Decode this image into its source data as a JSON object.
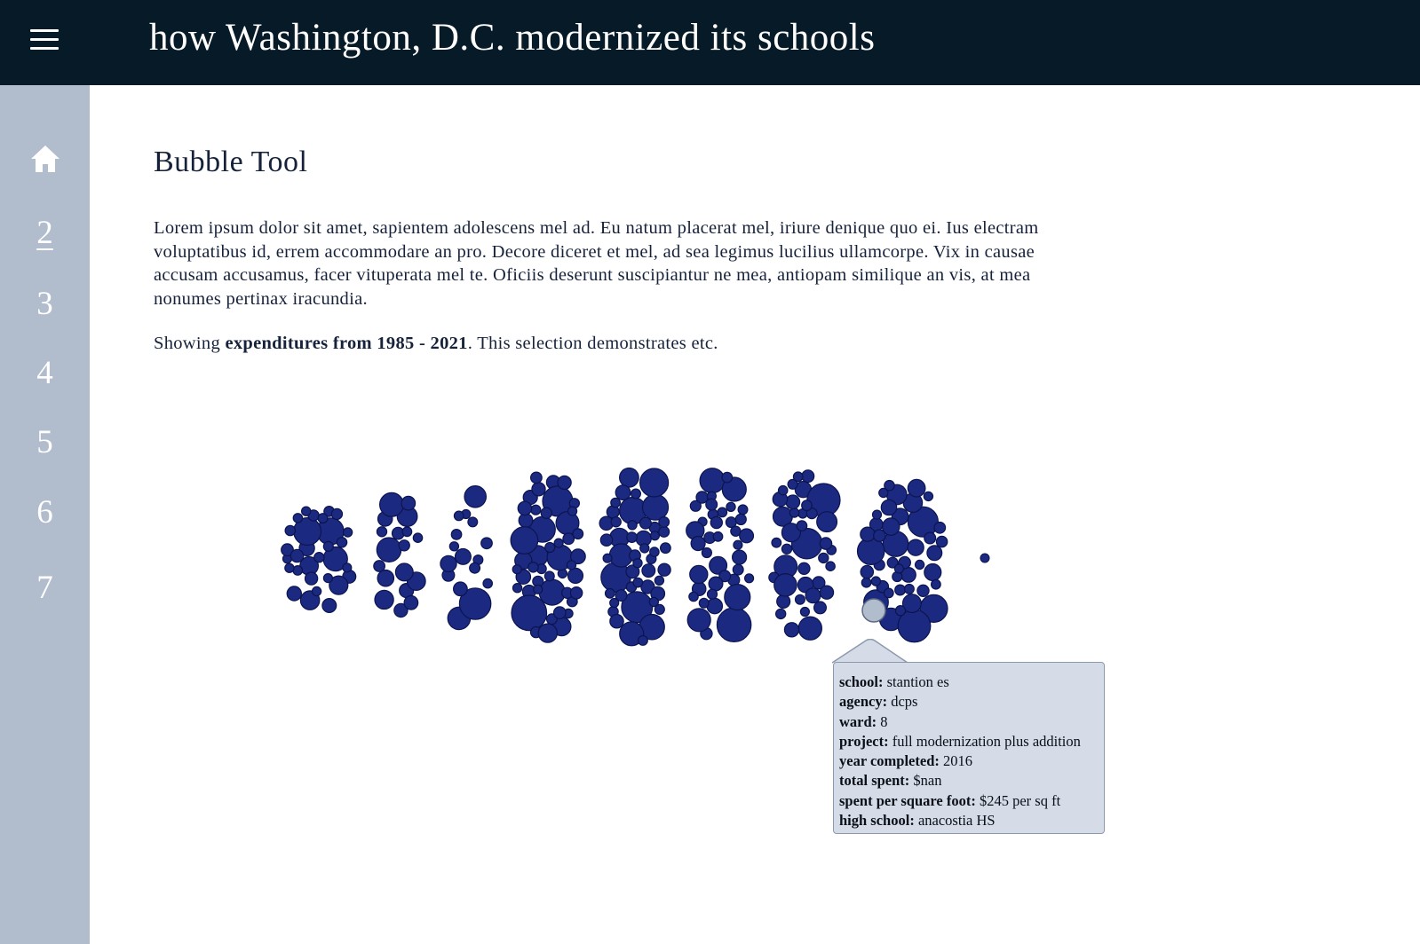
{
  "header": {
    "menu_icon": "hamburger-menu-icon",
    "title": "how Washington, D.C. modernized its schools"
  },
  "sidebar": {
    "home_icon": "home-icon",
    "items": [
      {
        "label": "2",
        "active": true
      },
      {
        "label": "3",
        "active": false
      },
      {
        "label": "4",
        "active": false
      },
      {
        "label": "5",
        "active": false
      },
      {
        "label": "6",
        "active": false
      },
      {
        "label": "7",
        "active": false
      }
    ]
  },
  "main": {
    "title": "Bubble Tool",
    "intro": "Lorem ipsum dolor sit amet, sapientem adolescens mel ad. Eu natum placerat mel, iriure denique quo ei. Ius electram voluptatibus id, errem accommodare an pro. Decore diceret et mel, ad sea legimus lucilius ullamcorpe. Vix in causae accusam accusamus, facer vituperata mel te. Oficiis deserunt suscipiantur ne mea, antiopam similique an vis, at mea nonumes pertinax iracundia.",
    "showing_prefix": "Showing ",
    "showing_bold": "expenditures from 1985 - 2021",
    "showing_suffix": ". This selection demonstrates etc."
  },
  "colors": {
    "header_bg": "#061a27",
    "sidebar_bg": "#b1bccd",
    "bubble_fill": "#1b2a80",
    "bubble_stroke": "#0c1450",
    "bubble_highlight": "#b1bccd",
    "tooltip_bg": "#d6dce7"
  },
  "tooltip": {
    "rows": [
      {
        "label": "school:",
        "value": "stantion es"
      },
      {
        "label": "agency:",
        "value": "dcps"
      },
      {
        "label": "ward:",
        "value": "8"
      },
      {
        "label": "project:",
        "value": "full modernization plus addition"
      },
      {
        "label": "year completed:",
        "value": "2016"
      },
      {
        "label": "total spent:",
        "value": "$nan"
      },
      {
        "label": "spent per square foot:",
        "value": "$245 per sq ft"
      },
      {
        "label": "high school:",
        "value": "anacostia HS"
      }
    ]
  }
}
